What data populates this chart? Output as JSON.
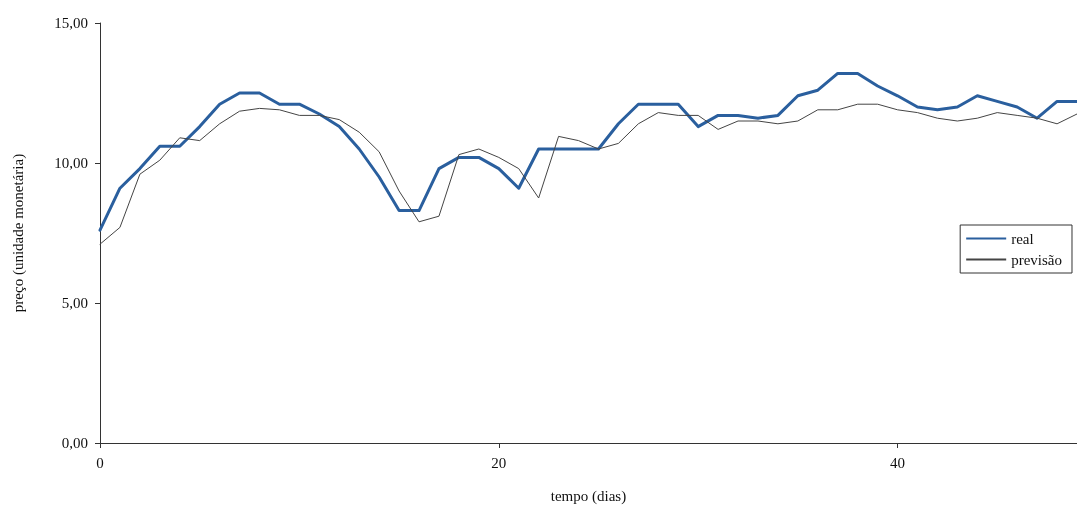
{
  "chart_data": {
    "type": "line",
    "xlabel": "tempo (dias)",
    "ylabel": "preço (unidade monetária)",
    "x": [
      0,
      1,
      2,
      3,
      4,
      5,
      6,
      7,
      8,
      9,
      10,
      11,
      12,
      13,
      14,
      15,
      16,
      17,
      18,
      19,
      20,
      21,
      22,
      23,
      24,
      25,
      26,
      27,
      28,
      29,
      30,
      31,
      32,
      33,
      34,
      35,
      36,
      37,
      38,
      39,
      40,
      41,
      42,
      43,
      44,
      45,
      46,
      47,
      48,
      49
    ],
    "series": [
      {
        "name": "real",
        "color": "#2a5f9e",
        "values": [
          7.6,
          9.1,
          9.8,
          10.6,
          10.6,
          11.3,
          12.1,
          12.5,
          12.5,
          12.1,
          12.1,
          11.75,
          11.3,
          10.5,
          9.5,
          8.3,
          8.3,
          9.8,
          10.2,
          10.2,
          9.8,
          9.1,
          10.5,
          10.5,
          10.5,
          10.5,
          11.4,
          12.1,
          12.1,
          12.1,
          11.3,
          11.7,
          11.7,
          11.6,
          11.7,
          12.4,
          12.6,
          13.2,
          13.2,
          12.75,
          12.4,
          12.0,
          11.9,
          12.0,
          12.4,
          12.2,
          12.0,
          11.6,
          12.2,
          12.2
        ]
      },
      {
        "name": "previsão",
        "color": "#444444",
        "values": [
          7.1,
          7.7,
          9.6,
          10.1,
          10.9,
          10.8,
          11.4,
          11.85,
          11.95,
          11.9,
          11.7,
          11.7,
          11.55,
          11.1,
          10.4,
          9.0,
          7.9,
          8.1,
          10.3,
          10.5,
          10.2,
          9.8,
          8.75,
          10.95,
          10.8,
          10.5,
          10.7,
          11.4,
          11.8,
          11.7,
          11.7,
          11.2,
          11.5,
          11.5,
          11.4,
          11.5,
          11.9,
          11.9,
          12.1,
          12.1,
          11.9,
          11.8,
          11.6,
          11.5,
          11.6,
          11.8,
          11.7,
          11.6,
          11.4,
          11.75
        ]
      }
    ],
    "xlim": [
      0,
      49
    ],
    "xticks": [
      0,
      20,
      40
    ],
    "ylim": [
      0,
      15
    ],
    "yticks": [
      {
        "value": 0,
        "label": "0,00"
      },
      {
        "value": 5,
        "label": "5,00"
      },
      {
        "value": 10,
        "label": "10,00"
      },
      {
        "value": 15,
        "label": "15,00"
      }
    ],
    "grid": false,
    "legend": "right",
    "marker": "none",
    "line_style": "solid"
  }
}
